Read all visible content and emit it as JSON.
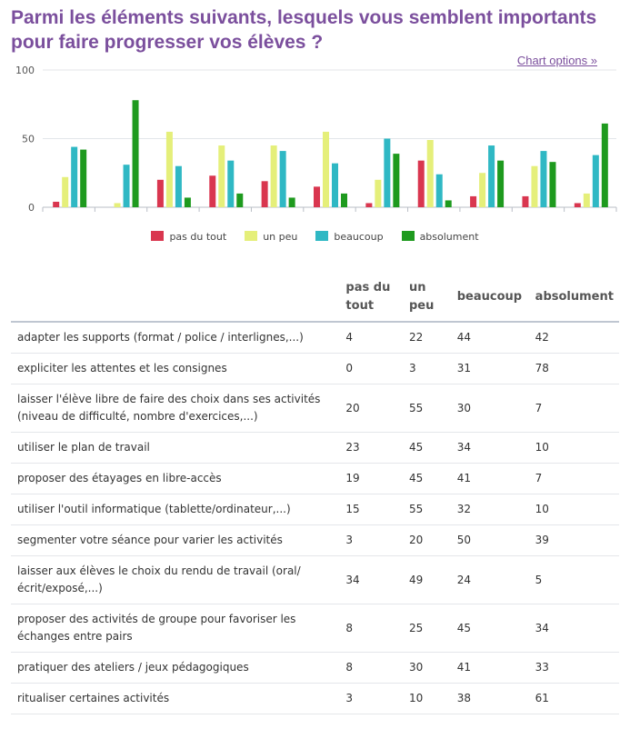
{
  "header": {
    "title": "Parmi les éléments suivants, lesquels vous semblent importants pour faire progresser vos élèves ?",
    "chart_options_label": "Chart options »"
  },
  "chart_data": {
    "type": "bar",
    "title": "Parmi les éléments suivants, lesquels vous semblent importants pour faire progresser vos élèves ?",
    "xlabel": "",
    "ylabel": "",
    "ylim": [
      0,
      100
    ],
    "yticks": [
      "0",
      "50",
      "100"
    ],
    "grid": true,
    "legend_position": "bottom",
    "categories": [
      "adapter les supports (format / police / interlignes,...)",
      "expliciter les attentes et les consignes",
      "laisser l'élève libre de faire des choix dans ses activités (niveau de difficulté, nombre d'exercices,...)",
      "utiliser le plan de travail",
      "proposer des étayages en libre-accès",
      "utiliser l'outil informatique (tablette/ordinateur,...)",
      "segmenter votre séance pour varier les activités",
      "laisser aux élèves le choix du rendu de travail (oral/ écrit/exposé,...)",
      "proposer des activités de groupe pour favoriser les échanges entre pairs",
      "pratiquer des ateliers / jeux pédagogiques",
      "ritualiser certaines activités"
    ],
    "series": [
      {
        "name": "pas du tout",
        "color": "#d9364f",
        "values": [
          4,
          0,
          20,
          23,
          19,
          15,
          3,
          34,
          8,
          8,
          3
        ]
      },
      {
        "name": "un peu",
        "color": "#e5ef7a",
        "values": [
          22,
          3,
          55,
          45,
          45,
          55,
          20,
          49,
          25,
          30,
          10
        ]
      },
      {
        "name": "beaucoup",
        "color": "#2fb8c4",
        "values": [
          44,
          31,
          30,
          34,
          41,
          32,
          50,
          24,
          45,
          41,
          38
        ]
      },
      {
        "name": "absolument",
        "color": "#1e9a1e",
        "values": [
          42,
          78,
          7,
          10,
          7,
          10,
          39,
          5,
          34,
          33,
          61
        ]
      }
    ]
  },
  "table": {
    "headers": [
      "",
      "pas du tout",
      "un peu",
      "beaucoup",
      "absolument"
    ]
  }
}
